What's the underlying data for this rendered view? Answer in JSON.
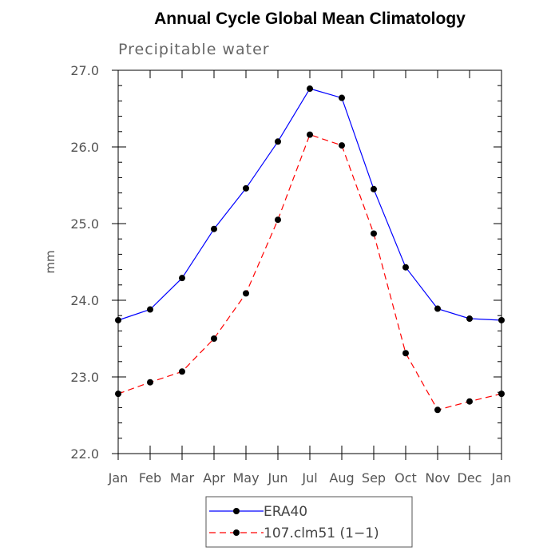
{
  "chart_data": {
    "type": "line",
    "title": "Annual Cycle Global Mean Climatology",
    "subtitle": "Precipitable water",
    "xlabel": "",
    "ylabel": "mm",
    "categories": [
      "Jan",
      "Feb",
      "Mar",
      "Apr",
      "May",
      "Jun",
      "Jul",
      "Aug",
      "Sep",
      "Oct",
      "Nov",
      "Dec",
      "Jan"
    ],
    "ylim": [
      22.0,
      27.0
    ],
    "yticks": [
      "22.0",
      "23.0",
      "24.0",
      "25.0",
      "26.0",
      "27.0"
    ],
    "grid": false,
    "legend_position": "bottom",
    "series": [
      {
        "name": "ERA40",
        "color": "#0000ff",
        "line_style": "solid",
        "values": [
          23.74,
          23.88,
          24.29,
          24.93,
          25.46,
          26.07,
          26.76,
          26.64,
          25.45,
          24.43,
          23.89,
          23.76,
          23.74
        ]
      },
      {
        "name": "107.clm51 (1−1)",
        "color": "#ff0000",
        "line_style": "dashed",
        "values": [
          22.78,
          22.93,
          23.07,
          23.5,
          24.09,
          25.05,
          26.16,
          26.02,
          24.87,
          23.31,
          22.57,
          22.68,
          22.78
        ]
      }
    ]
  }
}
